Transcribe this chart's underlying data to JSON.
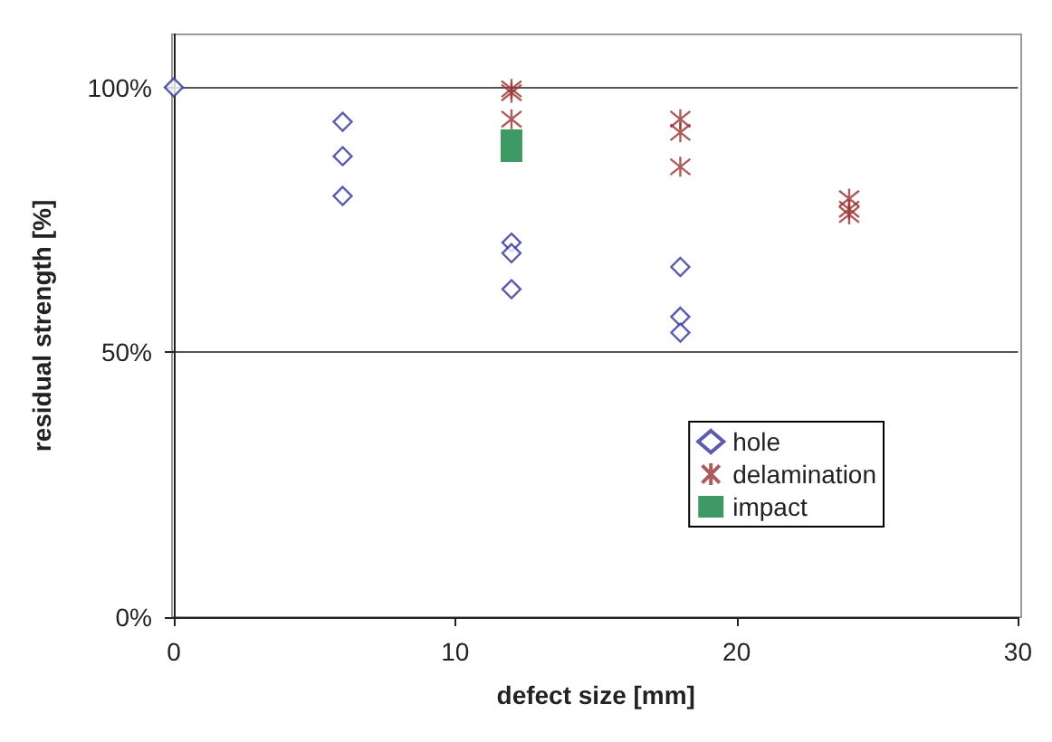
{
  "chart_data": {
    "type": "scatter",
    "xlabel": "defect size [mm]",
    "ylabel": "residual strength [%]",
    "xlim": [
      0,
      30
    ],
    "xticks": [
      0,
      10,
      20,
      30
    ],
    "ylim": [
      0,
      110
    ],
    "yticks": [
      {
        "value": 0,
        "label": "0%"
      },
      {
        "value": 50,
        "label": "50%"
      },
      {
        "value": 100,
        "label": "100%"
      }
    ],
    "grid": "y",
    "legend": "right",
    "series": [
      {
        "name": "hole",
        "color": "#333399",
        "marker": "diamond",
        "x": [
          0,
          6,
          6,
          6,
          12,
          12,
          12,
          18,
          18,
          18
        ],
        "values": [
          100,
          93.5,
          87,
          79.5,
          70.7,
          68.7,
          61.9,
          66.1,
          56.7,
          53.7
        ]
      },
      {
        "name": "delamination",
        "color": "#993333",
        "marker": "cross",
        "x": [
          12,
          12,
          12,
          18,
          18,
          18,
          24,
          24,
          24
        ],
        "values": [
          99.7,
          99,
          94,
          94,
          91.5,
          85,
          79,
          77,
          76
        ]
      },
      {
        "name": "impact",
        "color": "#0f7f3f",
        "marker": "square",
        "x": [
          12
        ],
        "values": [
          89
        ]
      }
    ]
  }
}
